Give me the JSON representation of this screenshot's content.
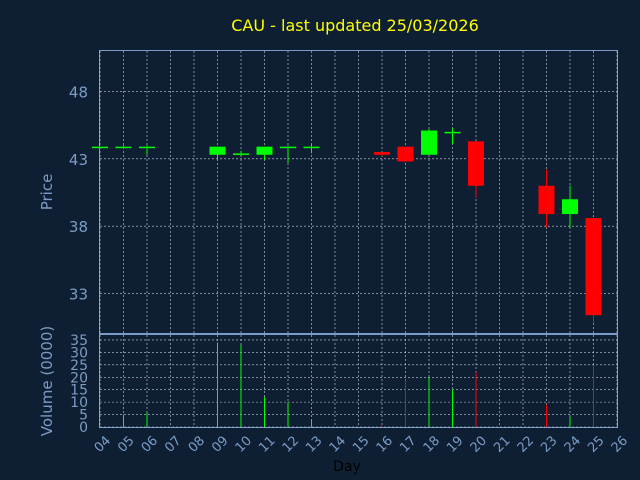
{
  "chart_data": {
    "type": "candlestick",
    "title": "CAU - last updated 25/03/2026",
    "price_ylabel": "Price",
    "volume_ylabel": "Volume (0000)",
    "xlabel": "Day",
    "x_ticks": [
      "04",
      "05",
      "06",
      "07",
      "08",
      "09",
      "10",
      "11",
      "12",
      "13",
      "14",
      "15",
      "16",
      "17",
      "18",
      "19",
      "20",
      "21",
      "22",
      "23",
      "24",
      "25",
      "26"
    ],
    "price_ylim": [
      30,
      51
    ],
    "price_yticks": [
      33,
      38,
      43,
      48
    ],
    "volume_ylim": [
      0,
      37
    ],
    "volume_yticks": [
      0,
      5,
      10,
      15,
      20,
      25,
      30,
      35
    ],
    "grid": true,
    "colors": {
      "background": "#0f1f33",
      "up": "#00ff00",
      "down": "#ff0000",
      "title": "#ffff00",
      "axis_text": "#7a9cc6",
      "frame": "#7a9cc6",
      "grid": "#c8d0dc",
      "xlabel": "#000000"
    },
    "candles": [
      {
        "day": "04",
        "open": 43.9,
        "high": 43.9,
        "low": 43.9,
        "close": 43.9,
        "volume": 0.3
      },
      {
        "day": "05",
        "open": 43.9,
        "high": 44.0,
        "low": 43.9,
        "close": 43.9,
        "volume": 5
      },
      {
        "day": "06",
        "open": 43.9,
        "high": 44.0,
        "low": 43.3,
        "close": 43.9,
        "volume": 6
      },
      {
        "day": "09",
        "open": 43.3,
        "high": 43.9,
        "low": 42.9,
        "close": 43.9,
        "volume": 34
      },
      {
        "day": "10",
        "open": 43.3,
        "high": 43.6,
        "low": 43.2,
        "close": 43.4,
        "volume": 33
      },
      {
        "day": "11",
        "open": 43.3,
        "high": 43.9,
        "low": 42.9,
        "close": 43.9,
        "volume": 12
      },
      {
        "day": "12",
        "open": 43.9,
        "high": 44.0,
        "low": 42.7,
        "close": 43.9,
        "volume": 10
      },
      {
        "day": "13",
        "open": 43.9,
        "high": 44.1,
        "low": 43.4,
        "close": 43.9,
        "volume": 3
      },
      {
        "day": "16",
        "open": 43.5,
        "high": 43.5,
        "low": 43.2,
        "close": 43.3,
        "volume": 0.5
      },
      {
        "day": "17",
        "open": 43.9,
        "high": 43.9,
        "low": 42.8,
        "close": 42.8,
        "volume": 19
      },
      {
        "day": "18",
        "open": 43.3,
        "high": 45.2,
        "low": 43.3,
        "close": 45.1,
        "volume": 20
      },
      {
        "day": "19",
        "open": 45.0,
        "high": 45.3,
        "low": 44.1,
        "close": 45.0,
        "volume": 15
      },
      {
        "day": "20",
        "open": 44.3,
        "high": 44.3,
        "low": 40.1,
        "close": 41.0,
        "volume": 22
      },
      {
        "day": "23",
        "open": 41.0,
        "high": 42.2,
        "low": 37.9,
        "close": 38.9,
        "volume": 9
      },
      {
        "day": "24",
        "open": 38.9,
        "high": 41.0,
        "low": 37.9,
        "close": 40.0,
        "volume": 4
      },
      {
        "day": "25",
        "open": 38.6,
        "high": 38.6,
        "low": 30.8,
        "close": 31.4,
        "volume": 25
      }
    ]
  }
}
